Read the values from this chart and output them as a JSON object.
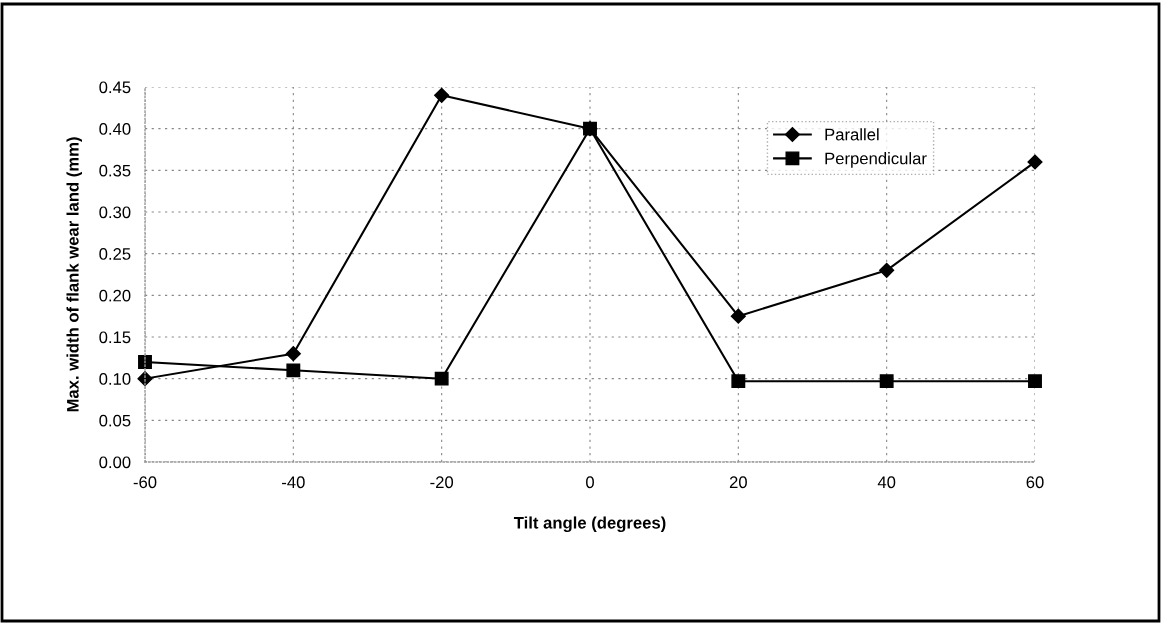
{
  "chart_data": {
    "type": "line",
    "xlabel": "Tilt angle (degrees)",
    "ylabel": "Max. width of flank wear land (mm)",
    "x": [
      -60,
      -40,
      -20,
      0,
      20,
      40,
      60
    ],
    "series": [
      {
        "name": "Parallel",
        "color": "#000000",
        "marker": "diamond",
        "values": [
          0.1,
          0.13,
          0.44,
          0.4,
          0.175,
          0.23,
          0.36
        ]
      },
      {
        "name": "Perpendicular",
        "color": "#000000",
        "marker": "square",
        "values": [
          0.12,
          0.11,
          0.1,
          0.4,
          0.097,
          0.097,
          0.097
        ]
      }
    ],
    "xlim": [
      -60,
      60
    ],
    "xticks": [
      -60,
      -40,
      -20,
      0,
      20,
      40,
      60
    ],
    "ylim": [
      0,
      0.45
    ],
    "yticks": [
      {
        "value": 0,
        "label": "0.00"
      },
      {
        "value": 0.05,
        "label": "0.05"
      },
      {
        "value": 0.1,
        "label": "0.10"
      },
      {
        "value": 0.15,
        "label": "0.15"
      },
      {
        "value": 0.2,
        "label": "0.20"
      },
      {
        "value": 0.25,
        "label": "0.25"
      },
      {
        "value": 0.3,
        "label": "0.30"
      },
      {
        "value": 0.35,
        "label": "0.35"
      },
      {
        "value": 0.4,
        "label": "0.40"
      },
      {
        "value": 0.45,
        "label": "0.45"
      }
    ],
    "grid": true,
    "legend": "top right",
    "line_style": "solid"
  }
}
